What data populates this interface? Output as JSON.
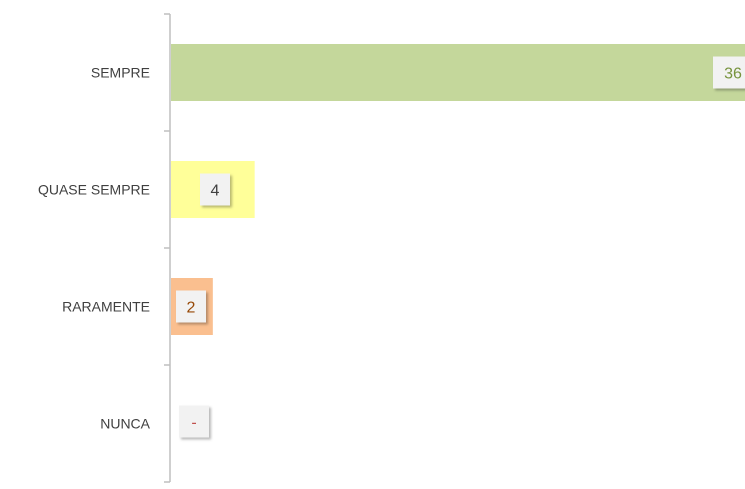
{
  "chart_data": {
    "type": "bar",
    "orientation": "horizontal",
    "categories": [
      "SEMPRE",
      "QUASE SEMPRE",
      "RARAMENTE",
      "NUNCA"
    ],
    "values": [
      36,
      4,
      2,
      0
    ],
    "data_labels": [
      "36",
      "4",
      "2",
      "-"
    ],
    "bar_colors": [
      "#c4d79b",
      "#ffff99",
      "#fabf8f",
      "#fabf8f"
    ],
    "label_colors": [
      "#76933c",
      "#404040",
      "#974806",
      "#c0504d"
    ],
    "xlim": [
      0,
      36
    ],
    "title": "",
    "xlabel": "",
    "ylabel": "",
    "grid": false,
    "legend": "none"
  }
}
